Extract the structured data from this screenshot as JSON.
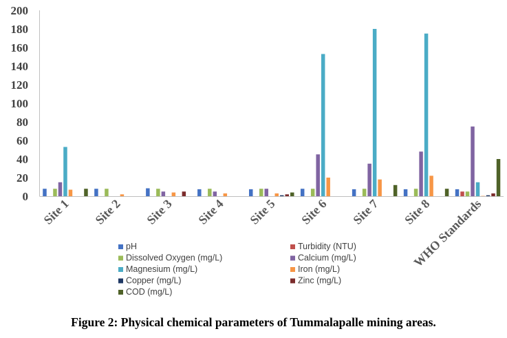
{
  "chart_data": {
    "type": "bar",
    "categories": [
      "Site 1",
      "Site 2",
      "Site 3",
      "Site 4",
      "Site 5",
      "Site 6",
      "Site 7",
      "Site 8",
      "WHO Standards"
    ],
    "ylim": [
      0,
      200
    ],
    "yticks": [
      0,
      20,
      40,
      60,
      80,
      100,
      120,
      140,
      160,
      180,
      200
    ],
    "grid": false,
    "legend_position": "bottom",
    "series": [
      {
        "name": "pH",
        "color": "#4472C4",
        "values": [
          8,
          8,
          8.5,
          7.5,
          7.5,
          8,
          7.5,
          7.5,
          7.5
        ]
      },
      {
        "name": "Turbidity (NTU)",
        "color": "#C0504D",
        "values": [
          0,
          0,
          0,
          0,
          0,
          0,
          0,
          0,
          5
        ]
      },
      {
        "name": "Dissolved Oxygen (mg/L)",
        "color": "#9BBB59",
        "values": [
          8,
          8,
          8,
          8,
          8,
          8,
          8,
          8,
          5
        ]
      },
      {
        "name": "Calcium (mg/L)",
        "color": "#8064A2",
        "values": [
          15,
          0,
          5,
          5,
          8,
          45,
          35,
          48,
          75
        ]
      },
      {
        "name": "Magnesium (mg/L)",
        "color": "#4BACC6",
        "values": [
          53,
          0,
          0,
          0,
          0,
          153,
          180,
          175,
          15
        ]
      },
      {
        "name": "Iron (mg/L)",
        "color": "#F79646",
        "values": [
          7,
          2,
          4,
          3,
          3,
          20,
          18,
          22,
          0.3
        ]
      },
      {
        "name": "Copper (mg/L)",
        "color": "#1F3864",
        "values": [
          0,
          0,
          0,
          0,
          1,
          0,
          0,
          0,
          1
        ]
      },
      {
        "name": "Zinc (mg/L)",
        "color": "#7B2C2C",
        "values": [
          0,
          0,
          5,
          0,
          2,
          0,
          0,
          0,
          3
        ]
      },
      {
        "name": "COD (mg/L)",
        "color": "#4F6228",
        "values": [
          8,
          0,
          0,
          0,
          4,
          0,
          12,
          8,
          40
        ]
      }
    ]
  },
  "caption": "Figure 2: Physical chemical parameters of Tummalapalle mining areas."
}
